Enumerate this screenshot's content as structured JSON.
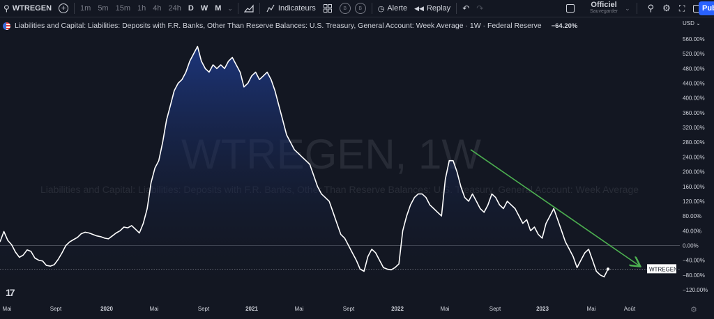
{
  "toolbar": {
    "symbol": "WTREGEN",
    "timeframes": [
      "1m",
      "5m",
      "15m",
      "1h",
      "4h",
      "24h",
      "D",
      "W",
      "M"
    ],
    "active_timeframe": "W",
    "indicators_label": "Indicateurs",
    "circle_buttons": [
      "B",
      "B"
    ],
    "alert_label": "Alerte",
    "replay_label": "Replay",
    "save_title": "Officiel",
    "save_subtitle": "Sauvegarder",
    "publish_label": "Pub"
  },
  "legend": {
    "title": "Liabilities and Capital: Liabilities: Deposits with F.R. Banks, Other Than Reserve Balances: U.S. Treasury, General Account: Week Average · 1W · Federal Reserve",
    "value": "−64.20%"
  },
  "watermark": {
    "line1": "WTREGEN, 1W",
    "line2": "Liabilities and Capital: Liabilities: Deposits with F.R. Banks, Other Than Reserve Balances: U.S. Treasury, General Account: Week Average"
  },
  "chart_data": {
    "type": "area",
    "currency": "USD",
    "ylim": [
      -130,
      580
    ],
    "y_ticks": [
      560,
      520,
      480,
      440,
      400,
      360,
      320,
      280,
      240,
      200,
      160,
      120,
      80,
      40,
      0,
      -40,
      -80,
      -120
    ],
    "y_tick_labels": [
      "560.00%",
      "520.00%",
      "480.00%",
      "440.00%",
      "400.00%",
      "360.00%",
      "320.00%",
      "280.00%",
      "240.00%",
      "200.00%",
      "160.00%",
      "120.00%",
      "80.00%",
      "40.00%",
      "0.00%",
      "−40.00%",
      "−80.00%",
      "−120.00%"
    ],
    "x_labels": [
      "Mai",
      "Sept",
      "2020",
      "Mai",
      "Sept",
      "2021",
      "Mai",
      "Sept",
      "2022",
      "Mai",
      "Sept",
      "2023",
      "Mai",
      "Août"
    ],
    "series": [
      {
        "values": [
          10,
          38,
          14,
          2,
          -18,
          -32,
          -26,
          -12,
          -16,
          -34,
          -40,
          -42,
          -54,
          -56,
          -52,
          -38,
          -20,
          0,
          10,
          16,
          22,
          32,
          36,
          34,
          30,
          26,
          24,
          20,
          18,
          26,
          34,
          40,
          50,
          48,
          54,
          44,
          34,
          60,
          100,
          170,
          210,
          230,
          280,
          340,
          380,
          420,
          440,
          450,
          470,
          500,
          520,
          540,
          500,
          480,
          470,
          490,
          480,
          490,
          480,
          500,
          510,
          490,
          470,
          430,
          440,
          460,
          470,
          450,
          460,
          470,
          450,
          420,
          380,
          340,
          300,
          280,
          260,
          250,
          240,
          230,
          220,
          190,
          160,
          140,
          130,
          120,
          90,
          60,
          30,
          20,
          0,
          -20,
          -40,
          -64,
          -70,
          -30,
          -10,
          -20,
          -40,
          -60,
          -64,
          -66,
          -60,
          -50,
          40,
          80,
          110,
          130,
          140,
          140,
          130,
          110,
          100,
          90,
          80,
          180,
          230,
          230,
          200,
          160,
          130,
          120,
          140,
          120,
          100,
          90,
          110,
          140,
          130,
          110,
          100,
          120,
          110,
          100,
          80,
          60,
          70,
          40,
          50,
          30,
          20,
          60,
          80,
          100,
          70,
          40,
          10,
          -10,
          -30,
          -60,
          -40,
          -20,
          -10,
          -40,
          -70,
          -80,
          -85,
          -64
        ]
      }
    ],
    "last_value_label": "WTREGEN",
    "trendline": {
      "from": [
        "2022-06",
        260
      ],
      "to": [
        "2023-08",
        -55
      ],
      "color": "#4caf50"
    }
  }
}
